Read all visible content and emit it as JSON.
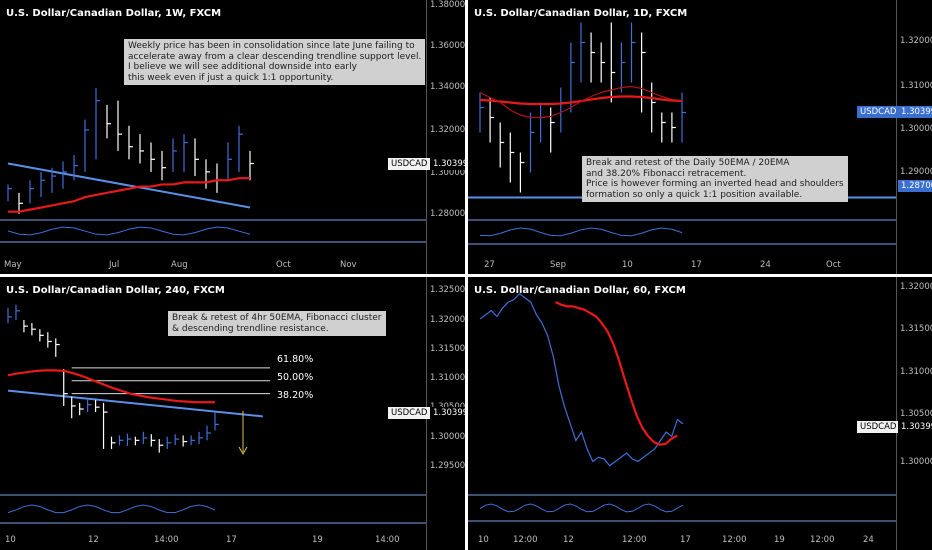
{
  "colors": {
    "background": "#000000",
    "price": "#3f6fd9",
    "ema": "#e8191b",
    "trend": "#5b8fe8",
    "text": "#bfbfbf",
    "note_bg": "#d0d0d0"
  },
  "panels": [
    {
      "title": "U.S. Dollar/Canadian Dollar, 1W, FXCM",
      "yticks": [
        "1.38000",
        "1.36000",
        "1.34000",
        "1.32000",
        "1.30000",
        "1.28000"
      ],
      "xticks": [
        "May",
        "Jul",
        "Aug",
        "Oct",
        "Nov"
      ],
      "pair_label": "USDCAD",
      "price_label": "1.30399",
      "note": [
        "Weekly price has been in consolidation since late June failing to",
        "accelerate away from a clear descending trendline support level.",
        "I believe we will see additional downside into early",
        "this week even if just a quick 1:1 opportunity."
      ]
    },
    {
      "title": "U.S. Dollar/Canadian Dollar, 1D, FXCM",
      "yticks": [
        "1.32000",
        "1.31000",
        "1.30000",
        "1.29000"
      ],
      "xticks": [
        "27",
        "Sep",
        "10",
        "17",
        "24",
        "Oct"
      ],
      "pair_label": "USDCAD",
      "price_label": "1.30399",
      "level_label": "1.28700",
      "note": [
        "Break and retest of the Daily 50EMA / 20EMA",
        "and 38.20% Fibonacci retracement.",
        "Price is however forming an inverted head and shoulders",
        "formation so only a quick 1:1 position available."
      ]
    },
    {
      "title": "U.S. Dollar/Canadian Dollar, 240, FXCM",
      "yticks": [
        "1.32500",
        "1.32000",
        "1.31500",
        "1.31000",
        "1.30500",
        "1.30000",
        "1.29500"
      ],
      "xticks": [
        "10",
        "12",
        "14:00",
        "17",
        "19",
        "14:00"
      ],
      "pair_label": "USDCAD",
      "price_label": "1.30399",
      "fib_levels": [
        "61.80%",
        "50.00%",
        "38.20%"
      ],
      "note": [
        "Break & retest of 4hr 50EMA, Fibonacci cluster",
        "& descending trendline resistance."
      ]
    },
    {
      "title": "U.S. Dollar/Canadian Dollar, 60, FXCM",
      "yticks": [
        "1.32000",
        "1.31500",
        "1.31000",
        "1.30500",
        "1.30000"
      ],
      "xticks": [
        "10",
        "12:00",
        "12",
        "12:00",
        "17",
        "12:00",
        "19",
        "12:00",
        "24"
      ],
      "pair_label": "USDCAD",
      "price_label": "1.30399"
    }
  ],
  "chart_data": [
    {
      "type": "candlestick",
      "title": "U.S. Dollar/Canadian Dollar, 1W, FXCM",
      "ylim": [
        1.278,
        1.382
      ],
      "x_ticks": [
        "May",
        "Jul",
        "Aug",
        "Oct",
        "Nov"
      ],
      "bars": [
        [
          1.292,
          1.286,
          1.294
        ],
        [
          1.285,
          1.28,
          1.29
        ],
        [
          1.292,
          1.285,
          1.296
        ],
        [
          1.296,
          1.288,
          1.3
        ],
        [
          1.298,
          1.29,
          1.302
        ],
        [
          1.3,
          1.292,
          1.305
        ],
        [
          1.303,
          1.296,
          1.308
        ],
        [
          1.32,
          1.3,
          1.325
        ],
        [
          1.334,
          1.306,
          1.34
        ],
        [
          1.323,
          1.316,
          1.332
        ],
        [
          1.318,
          1.31,
          1.334
        ],
        [
          1.312,
          1.306,
          1.322
        ],
        [
          1.31,
          1.304,
          1.318
        ],
        [
          1.306,
          1.3,
          1.314
        ],
        [
          1.302,
          1.296,
          1.31
        ],
        [
          1.31,
          1.3,
          1.316
        ],
        [
          1.314,
          1.3,
          1.318
        ],
        [
          1.306,
          1.298,
          1.316
        ],
        [
          1.3,
          1.292,
          1.306
        ],
        [
          1.296,
          1.29,
          1.304
        ],
        [
          1.306,
          1.296,
          1.314
        ],
        [
          1.318,
          1.3,
          1.322
        ],
        [
          1.304,
          1.296,
          1.31
        ]
      ],
      "series": [
        {
          "name": "50EMA",
          "values": [
            1.281,
            1.281,
            1.282,
            1.283,
            1.284,
            1.285,
            1.286,
            1.288,
            1.289,
            1.29,
            1.291,
            1.292,
            1.293,
            1.293,
            1.294,
            1.294,
            1.295,
            1.295,
            1.295,
            1.296,
            1.296,
            1.297,
            1.297
          ]
        }
      ],
      "trendline": [
        [
          0,
          1.304
        ],
        [
          22,
          1.283
        ]
      ],
      "last_price": 1.30399
    },
    {
      "type": "candlestick",
      "title": "U.S. Dollar/Canadian Dollar, 1D, FXCM",
      "ylim": [
        1.2825,
        1.3265
      ],
      "x_ticks": [
        "27",
        "Sep",
        "10",
        "17",
        "24",
        "Oct"
      ],
      "bars": [
        [
          1.305,
          1.3,
          1.308
        ],
        [
          1.303,
          1.298,
          1.307
        ],
        [
          1.298,
          1.293,
          1.302
        ],
        [
          1.296,
          1.29,
          1.3
        ],
        [
          1.294,
          1.288,
          1.296
        ],
        [
          1.3,
          1.292,
          1.304
        ],
        [
          1.303,
          1.298,
          1.306
        ],
        [
          1.302,
          1.296,
          1.305
        ],
        [
          1.306,
          1.3,
          1.309
        ],
        [
          1.314,
          1.304,
          1.318
        ],
        [
          1.318,
          1.31,
          1.322
        ],
        [
          1.316,
          1.31,
          1.32
        ],
        [
          1.314,
          1.31,
          1.318
        ],
        [
          1.312,
          1.306,
          1.322
        ],
        [
          1.314,
          1.308,
          1.318
        ],
        [
          1.318,
          1.31,
          1.322
        ],
        [
          1.316,
          1.304,
          1.32
        ],
        [
          1.306,
          1.3,
          1.31
        ],
        [
          1.302,
          1.298,
          1.304
        ],
        [
          1.301,
          1.298,
          1.304
        ],
        [
          1.304,
          1.298,
          1.308
        ]
      ],
      "series": [
        {
          "name": "50EMA",
          "values": [
            1.3065,
            1.3064,
            1.3062,
            1.306,
            1.3058,
            1.3057,
            1.3057,
            1.3057,
            1.3058,
            1.306,
            1.3063,
            1.3066,
            1.3069,
            1.3071,
            1.3072,
            1.3072,
            1.3071,
            1.3069,
            1.3066,
            1.3064,
            1.3063
          ]
        },
        {
          "name": "20EMA",
          "values": [
            1.308,
            1.307,
            1.306,
            1.3045,
            1.3035,
            1.303,
            1.303,
            1.3032,
            1.304,
            1.305,
            1.3062,
            1.3072,
            1.308,
            1.3085,
            1.309,
            1.3092,
            1.3088,
            1.308,
            1.3072,
            1.3066,
            1.3064
          ]
        }
      ],
      "level": 1.287,
      "last_price": 1.30399
    },
    {
      "type": "candlestick",
      "title": "U.S. Dollar/Canadian Dollar, 240, FXCM",
      "ylim": [
        1.2915,
        1.327
      ],
      "x_ticks": [
        "10",
        "12",
        "14:00",
        "17",
        "19",
        "14:00"
      ],
      "bars": [
        [
          1.3205,
          1.3195,
          1.322
        ],
        [
          1.3215,
          1.32,
          1.3225
        ],
        [
          1.319,
          1.318,
          1.32
        ],
        [
          1.3185,
          1.3175,
          1.3195
        ],
        [
          1.3175,
          1.3165,
          1.3185
        ],
        [
          1.3165,
          1.3155,
          1.318
        ],
        [
          1.316,
          1.314,
          1.317
        ],
        [
          1.308,
          1.306,
          1.312
        ],
        [
          1.306,
          1.304,
          1.3075
        ],
        [
          1.3055,
          1.3045,
          1.3065
        ],
        [
          1.3062,
          1.305,
          1.307
        ],
        [
          1.3058,
          1.305,
          1.307
        ],
        [
          1.305,
          1.299,
          1.3065
        ],
        [
          1.3,
          1.299,
          1.301
        ],
        [
          1.3004,
          1.2996,
          1.3012
        ],
        [
          1.3006,
          1.2995,
          1.3015
        ],
        [
          1.3004,
          1.2996,
          1.301
        ],
        [
          1.3008,
          1.2998,
          1.3018
        ],
        [
          1.3004,
          1.2994,
          1.3014
        ],
        [
          1.2996,
          1.2984,
          1.3006
        ],
        [
          1.3,
          1.299,
          1.301
        ],
        [
          1.3006,
          1.2996,
          1.3014
        ],
        [
          1.3002,
          1.2994,
          1.3012
        ],
        [
          1.3004,
          1.2996,
          1.3012
        ],
        [
          1.3008,
          1.2998,
          1.3018
        ],
        [
          1.3016,
          1.3004,
          1.3028
        ],
        [
          1.303,
          1.302,
          1.305
        ]
      ],
      "series": [
        {
          "name": "50EMA",
          "values": [
            1.311,
            1.3113,
            1.3115,
            1.3117,
            1.3118,
            1.3118,
            1.3117,
            1.3113,
            1.3108,
            1.3102,
            1.3096,
            1.309,
            1.3085,
            1.308,
            1.3077,
            1.3074,
            1.3072,
            1.307,
            1.3068,
            1.3067,
            1.3066,
            1.3066,
            1.3066
          ]
        }
      ],
      "fibonacci": [
        {
          "label": "61.80%",
          "value": 1.3122
        },
        {
          "label": "50.00%",
          "value": 1.3101
        },
        {
          "label": "38.20%",
          "value": 1.308
        }
      ],
      "trendline": [
        [
          0,
          1.3085
        ],
        [
          32,
          1.3043
        ]
      ],
      "last_price": 1.30399
    },
    {
      "type": "line",
      "title": "U.S. Dollar/Canadian Dollar, 60, FXCM",
      "ylim": [
        1.2955,
        1.3215
      ],
      "x_ticks": [
        "10",
        "12:00",
        "12",
        "12:00",
        "17",
        "12:00",
        "19",
        "12:00",
        "24"
      ],
      "series": [
        {
          "name": "price",
          "values": [
            1.3165,
            1.317,
            1.3175,
            1.3168,
            1.3178,
            1.3185,
            1.3188,
            1.3195,
            1.319,
            1.3185,
            1.317,
            1.316,
            1.3145,
            1.312,
            1.3085,
            1.306,
            1.304,
            1.302,
            1.303,
            1.301,
            1.2995,
            1.3,
            1.2998,
            1.299,
            1.2995,
            1.3,
            1.3005,
            1.2998,
            1.2995,
            1.3,
            1.3005,
            1.301,
            1.302,
            1.303,
            1.3025,
            1.3045,
            1.304
          ]
        },
        {
          "name": "50EMA",
          "values": [
            1.3185,
            1.3182,
            1.318,
            1.318,
            1.3178,
            1.3176,
            1.3172,
            1.3168,
            1.316,
            1.315,
            1.3135,
            1.3115,
            1.3092,
            1.307,
            1.305,
            1.3035,
            1.3025,
            1.3018,
            1.3015,
            1.3016,
            1.3022,
            1.3026
          ]
        }
      ],
      "last_price": 1.30399
    }
  ]
}
